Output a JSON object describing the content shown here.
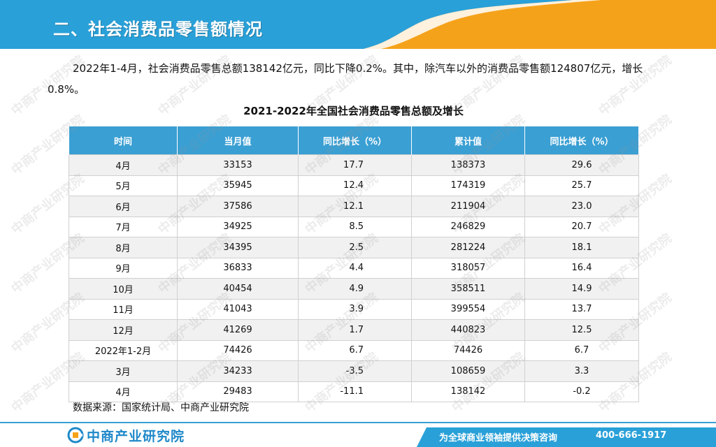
{
  "header": {
    "title": "二、社会消费品零售额情况"
  },
  "intro": {
    "text": "2022年1-4月，社会消费品零售总额138142亿元，同比下降0.2%。其中，除汽车以外的消费品零售额124807亿元，增长0.8%。"
  },
  "table": {
    "title": "2021-2022年全国社会消费品零售总额及增长",
    "columns": [
      "时间",
      "当月值",
      "同比增长（%）",
      "累计值",
      "同比增长（%）"
    ],
    "rows": [
      {
        "time": "4月",
        "monthly": "33153",
        "yoy_monthly": "17.7",
        "cumulative": "138373",
        "yoy_cumulative": "29.6"
      },
      {
        "time": "5月",
        "monthly": "35945",
        "yoy_monthly": "12.4",
        "cumulative": "174319",
        "yoy_cumulative": "25.7"
      },
      {
        "time": "6月",
        "monthly": "37586",
        "yoy_monthly": "12.1",
        "cumulative": "211904",
        "yoy_cumulative": "23.0"
      },
      {
        "time": "7月",
        "monthly": "34925",
        "yoy_monthly": "8.5",
        "cumulative": "246829",
        "yoy_cumulative": "20.7"
      },
      {
        "time": "8月",
        "monthly": "34395",
        "yoy_monthly": "2.5",
        "cumulative": "281224",
        "yoy_cumulative": "18.1"
      },
      {
        "time": "9月",
        "monthly": "36833",
        "yoy_monthly": "4.4",
        "cumulative": "318057",
        "yoy_cumulative": "16.4"
      },
      {
        "time": "10月",
        "monthly": "40454",
        "yoy_monthly": "4.9",
        "cumulative": "358511",
        "yoy_cumulative": "14.9"
      },
      {
        "time": "11月",
        "monthly": "41043",
        "yoy_monthly": "3.9",
        "cumulative": "399554",
        "yoy_cumulative": "13.7"
      },
      {
        "time": "12月",
        "monthly": "41269",
        "yoy_monthly": "1.7",
        "cumulative": "440823",
        "yoy_cumulative": "12.5"
      },
      {
        "time": "2022年1-2月",
        "monthly": "74426",
        "yoy_monthly": "6.7",
        "cumulative": "74426",
        "yoy_cumulative": "6.7"
      },
      {
        "time": "3月",
        "monthly": "34233",
        "yoy_monthly": "-3.5",
        "cumulative": "108659",
        "yoy_cumulative": "3.3"
      },
      {
        "time": "4月",
        "monthly": "29483",
        "yoy_monthly": "-11.1",
        "cumulative": "138142",
        "yoy_cumulative": "-0.2"
      }
    ]
  },
  "source": {
    "text": "数据来源：国家统计局、中商产业研究院"
  },
  "footer": {
    "logo_text": "中商产业研究院",
    "slogan": "为全球商业领袖提供决策咨询",
    "phone": "400-666-1917"
  },
  "watermark": {
    "text": "中商产业研究院"
  },
  "colors": {
    "banner_blue": "#2aa0d8",
    "banner_orange": "#f5a21b",
    "table_header": "#3a9fd3",
    "logo_blue": "#1f88c9"
  }
}
